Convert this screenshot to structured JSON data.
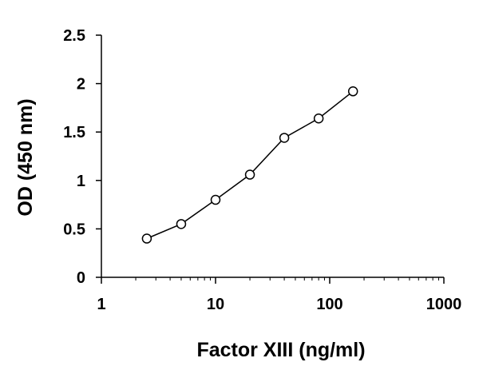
{
  "chart_data": {
    "type": "line",
    "title": "",
    "xlabel": "Factor XIII (ng/ml)",
    "ylabel": "OD (450 nm)",
    "x_scale": "log",
    "xlim": [
      1,
      1000
    ],
    "ylim": [
      0,
      2.5
    ],
    "x_ticks": [
      1,
      10,
      100,
      1000
    ],
    "x_tick_labels": [
      "1",
      "10",
      "100",
      "1000"
    ],
    "y_ticks": [
      0,
      0.5,
      1,
      1.5,
      2,
      2.5
    ],
    "y_tick_labels": [
      "0",
      "0.5",
      "1",
      "1.5",
      "2",
      "2.5"
    ],
    "grid": false,
    "legend": "none",
    "series": [
      {
        "x": [
          2.5,
          5,
          10,
          20,
          40,
          80,
          160
        ],
        "y": [
          0.4,
          0.55,
          0.8,
          1.06,
          1.44,
          1.64,
          1.92
        ],
        "marker": "open-circle",
        "line_color": "#000000",
        "marker_fill": "#ffffff"
      }
    ]
  }
}
